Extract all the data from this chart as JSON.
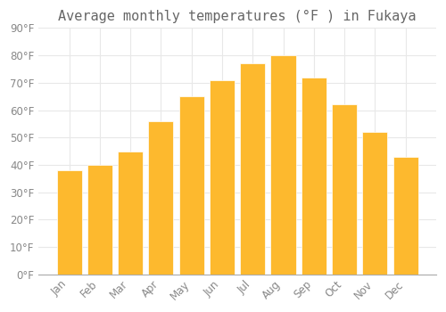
{
  "title": "Average monthly temperatures (°F ) in Fukaya",
  "months": [
    "Jan",
    "Feb",
    "Mar",
    "Apr",
    "May",
    "Jun",
    "Jul",
    "Aug",
    "Sep",
    "Oct",
    "Nov",
    "Dec"
  ],
  "values": [
    38,
    40,
    45,
    56,
    65,
    71,
    77,
    80,
    72,
    62,
    52,
    43
  ],
  "bar_color_top": "#FDB92E",
  "bar_color_bottom": "#F5A600",
  "background_color": "#FFFFFF",
  "grid_color": "#E8E8E8",
  "text_color": "#888888",
  "ylim": [
    0,
    90
  ],
  "yticks": [
    0,
    10,
    20,
    30,
    40,
    50,
    60,
    70,
    80,
    90
  ],
  "title_fontsize": 11,
  "tick_fontsize": 8.5,
  "bar_width": 0.82
}
